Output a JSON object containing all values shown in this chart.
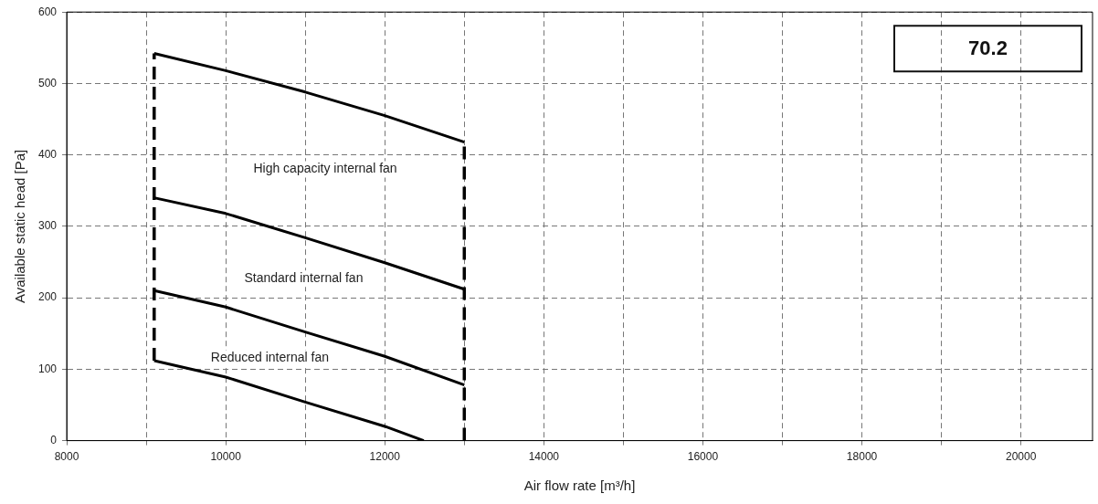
{
  "chart_data": {
    "type": "line",
    "xlabel": "Air flow rate [m³/h]",
    "ylabel": "Available static head [Pa]",
    "xlim": [
      8000,
      20900
    ],
    "ylim": [
      0,
      600
    ],
    "xticks": [
      8000,
      {
        "value": 9000,
        "label": null
      },
      10000,
      {
        "value": 11000,
        "label": null
      },
      12000,
      {
        "value": 13000,
        "label": null
      },
      14000,
      {
        "value": 15000,
        "label": null
      },
      16000,
      {
        "value": 17000,
        "label": null
      },
      18000,
      {
        "value": 19000,
        "label": null
      },
      20000
    ],
    "yticks": [
      0,
      100,
      200,
      300,
      400,
      500,
      600
    ],
    "grid": true,
    "marker": "none",
    "legend": false,
    "series": [
      {
        "color": "#000000",
        "line_style": "solid",
        "x": [
          9100,
          10000,
          11000,
          12000,
          13000
        ],
        "values": [
          542,
          518,
          488,
          455,
          418
        ]
      },
      {
        "color": "#000000",
        "line_style": "solid",
        "x": [
          9100,
          10000,
          11000,
          12000,
          13000
        ],
        "values": [
          340,
          318,
          284,
          249,
          212
        ]
      },
      {
        "color": "#000000",
        "line_style": "solid",
        "x": [
          9100,
          10000,
          11000,
          12000,
          13000
        ],
        "values": [
          210,
          187,
          152,
          118,
          78
        ]
      },
      {
        "color": "#000000",
        "line_style": "solid",
        "x": [
          9100,
          10000,
          11000,
          12000,
          12490
        ],
        "values": [
          112,
          89,
          54,
          20,
          0
        ]
      },
      {
        "color": "#000000",
        "line_style": "dashed",
        "x": [
          9100,
          9100
        ],
        "values": [
          112,
          542
        ]
      },
      {
        "color": "#000000",
        "line_style": "dashed",
        "x": [
          13000,
          13000
        ],
        "values": [
          0,
          418
        ]
      }
    ],
    "annotations": [
      "High capacity internal fan",
      "Standard internal fan",
      "Reduced internal fan",
      "70.2"
    ]
  }
}
